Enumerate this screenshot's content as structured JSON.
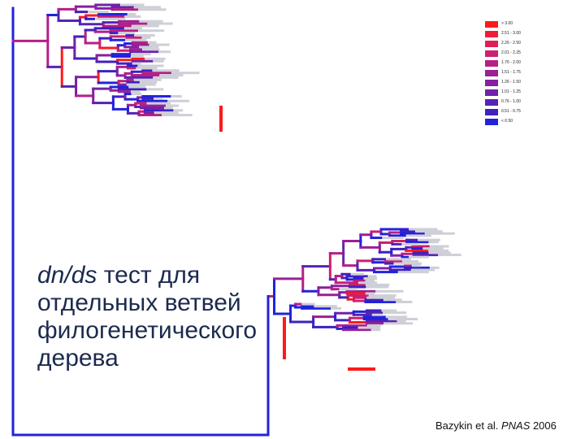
{
  "slide": {
    "title_prefix": "dn/ds",
    "title_rest": " тест для",
    "title_lines": [
      "отдельных ветвей",
      "филогенетического",
      "дерева"
    ],
    "citation_authors": "Bazykin et al. ",
    "citation_journal": "PNAS",
    "citation_year": " 2006"
  },
  "legend": {
    "items": [
      {
        "label": "> 3.00",
        "color": "#ff1a1a"
      },
      {
        "label": "2.51 - 3.00",
        "color": "#f01c3a"
      },
      {
        "label": "2.26 - 2.50",
        "color": "#e01e55"
      },
      {
        "label": "2.01 - 2.25",
        "color": "#cc1f70"
      },
      {
        "label": "1.76 - 2.00",
        "color": "#b51f86"
      },
      {
        "label": "1.51 - 1.75",
        "color": "#9c1f95"
      },
      {
        "label": "1.26 - 1.50",
        "color": "#8620a0"
      },
      {
        "label": "1.01 - 1.25",
        "color": "#6f22aa"
      },
      {
        "label": "0.76 - 1.00",
        "color": "#5722b4"
      },
      {
        "label": "0.51 - 0.75",
        "color": "#3f21be"
      },
      {
        "label": "< 0.50",
        "color": "#2222dd"
      }
    ]
  },
  "tree": {
    "colors": [
      "#2222dd",
      "#3f21be",
      "#5722b4",
      "#6f22aa",
      "#8620a0",
      "#9c1f95",
      "#b51f86",
      "#cc1f70",
      "#e01e55",
      "#ff1a1a"
    ],
    "leaf_count": 96
  }
}
